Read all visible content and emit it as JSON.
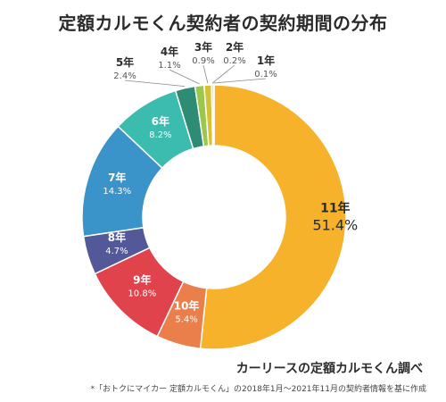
{
  "title": "定額カルモくん契約者の契約期間の分布",
  "chart_data": {
    "type": "pie",
    "title": "定額カルモくん契約者の契約期間の分布",
    "donut": true,
    "slices": [
      {
        "label": "11年",
        "value": 51.4,
        "display": "51.4%",
        "color": "#f6b22b"
      },
      {
        "label": "10年",
        "value": 5.4,
        "display": "5.4%",
        "color": "#eb7f4b"
      },
      {
        "label": "9年",
        "value": 10.8,
        "display": "10.8%",
        "color": "#e0434b"
      },
      {
        "label": "8年",
        "value": 4.7,
        "display": "4.7%",
        "color": "#535898"
      },
      {
        "label": "7年",
        "value": 14.3,
        "display": "14.3%",
        "color": "#3a93c9"
      },
      {
        "label": "6年",
        "value": 8.2,
        "display": "8.2%",
        "color": "#3cbcae"
      },
      {
        "label": "5年",
        "value": 2.4,
        "display": "2.4%",
        "color": "#2e8c75"
      },
      {
        "label": "4年",
        "value": 1.1,
        "display": "1.1%",
        "color": "#9bc74a"
      },
      {
        "label": "3年",
        "value": 0.9,
        "display": "0.9%",
        "color": "#d4c236"
      },
      {
        "label": "2年",
        "value": 0.2,
        "display": "0.2%",
        "color": "#8c6a3a"
      },
      {
        "label": "1年",
        "value": 0.1,
        "display": "0.1%",
        "color": "#555555"
      }
    ],
    "source_label": "カーリースの定額カルモくん調べ",
    "footnote": "*「おトクにマイカー 定額カルモくん」の2018年1月～2021年11月の契約者情報を基に作成"
  }
}
